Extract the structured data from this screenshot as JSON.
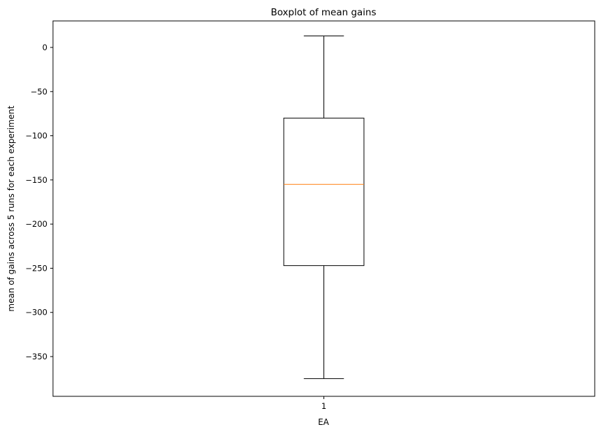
{
  "chart_data": {
    "type": "boxplot",
    "title": "Boxplot of mean gains",
    "xlabel": "EA",
    "ylabel": "mean of gains across 5 runs for each experiment",
    "categories": [
      "1"
    ],
    "boxes": [
      {
        "category": "1",
        "whisker_low": -375,
        "q1": -247,
        "median": -155,
        "q3": -80,
        "whisker_high": 13
      }
    ],
    "ylim": [
      -395,
      30
    ],
    "yticks": [
      0,
      -50,
      -100,
      -150,
      -200,
      -250,
      -300,
      -350
    ],
    "ytick_labels": [
      "0",
      "−50",
      "−100",
      "−150",
      "−200",
      "−250",
      "−300",
      "−350"
    ],
    "grid": false,
    "colors": {
      "box": "#000000",
      "median": "#ff7f0e",
      "whisker": "#000000"
    }
  }
}
